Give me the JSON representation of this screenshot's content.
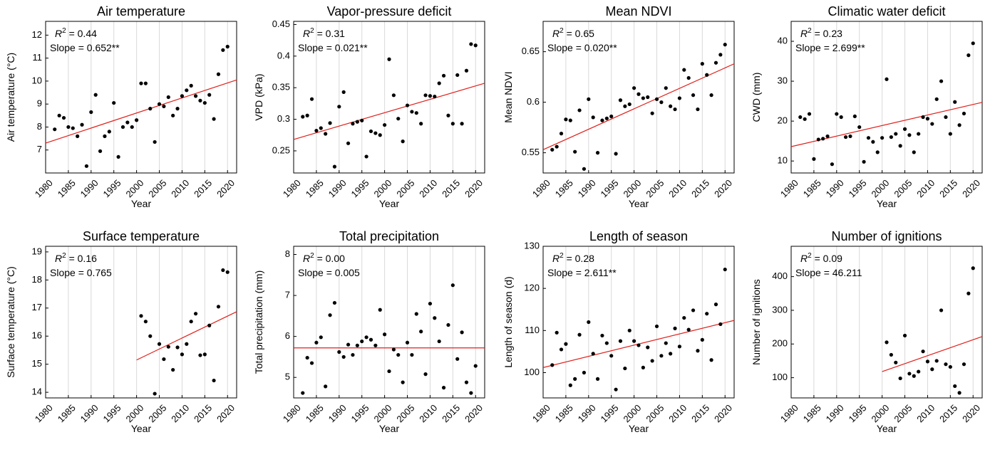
{
  "colors": {
    "points": "#000000",
    "fit_line": "#e0201b",
    "grid": "#d9d9d9",
    "axis": "#000000"
  },
  "chart_data": [
    {
      "type": "scatter",
      "title": "Air temperature",
      "xlabel": "Year",
      "ylabel": "Air temperature (°C)",
      "xlim": [
        1980,
        2022
      ],
      "ylim": [
        6.0,
        12.6
      ],
      "xticks": [
        1980,
        1985,
        1990,
        1995,
        2000,
        2005,
        2010,
        2015,
        2020
      ],
      "yticks": [
        7,
        8,
        9,
        10,
        11,
        12
      ],
      "r2_label": "R",
      "r2_sup": "2",
      "r2_value": " = 0.44",
      "slope_text": "Slope = 0.652**",
      "grid": "vertical",
      "fit": {
        "x": [
          1980,
          2022
        ],
        "y": [
          7.3,
          10.05
        ]
      },
      "x": [
        1982,
        1983,
        1984,
        1985,
        1986,
        1987,
        1988,
        1989,
        1990,
        1991,
        1992,
        1993,
        1994,
        1995,
        1996,
        1997,
        1998,
        1999,
        2000,
        2001,
        2002,
        2003,
        2004,
        2005,
        2006,
        2007,
        2008,
        2009,
        2010,
        2011,
        2012,
        2013,
        2014,
        2015,
        2016,
        2017,
        2018,
        2019,
        2020
      ],
      "y": [
        7.9,
        8.5,
        8.4,
        8.0,
        7.95,
        7.6,
        8.1,
        6.3,
        8.65,
        9.4,
        6.95,
        7.6,
        7.8,
        9.05,
        6.7,
        8.0,
        8.2,
        8.0,
        8.3,
        9.9,
        9.9,
        8.8,
        7.35,
        9.0,
        8.9,
        9.3,
        8.5,
        8.8,
        9.35,
        9.6,
        9.8,
        9.35,
        9.15,
        9.05,
        9.4,
        8.35,
        10.3,
        11.35,
        11.5
      ]
    },
    {
      "type": "scatter",
      "title": "Vapor-pressure deficit",
      "xlabel": "Year",
      "ylabel": "VPD (kPa)",
      "xlim": [
        1980,
        2022
      ],
      "ylim": [
        0.215,
        0.455
      ],
      "xticks": [
        1980,
        1985,
        1990,
        1995,
        2000,
        2005,
        2010,
        2015,
        2020
      ],
      "yticks": [
        0.25,
        0.3,
        0.35,
        0.4,
        0.45
      ],
      "r2_label": "R",
      "r2_sup": "2",
      "r2_value": " = 0.31",
      "slope_text": "Slope = 0.021**",
      "grid": "vertical",
      "fit": {
        "x": [
          1980,
          2022
        ],
        "y": [
          0.268,
          0.357
        ]
      },
      "x": [
        1982,
        1983,
        1984,
        1985,
        1986,
        1987,
        1988,
        1989,
        1990,
        1991,
        1992,
        1993,
        1994,
        1995,
        1996,
        1997,
        1998,
        1999,
        2000,
        2001,
        2002,
        2003,
        2004,
        2005,
        2006,
        2007,
        2008,
        2009,
        2010,
        2011,
        2012,
        2013,
        2014,
        2015,
        2016,
        2017,
        2018,
        2019,
        2020
      ],
      "y": [
        0.304,
        0.306,
        0.332,
        0.282,
        0.286,
        0.277,
        0.294,
        0.225,
        0.32,
        0.343,
        0.262,
        0.293,
        0.296,
        0.298,
        0.241,
        0.281,
        0.278,
        0.275,
        0.291,
        0.395,
        0.338,
        0.301,
        0.265,
        0.322,
        0.312,
        0.31,
        0.293,
        0.338,
        0.337,
        0.336,
        0.357,
        0.369,
        0.306,
        0.293,
        0.37,
        0.293,
        0.377,
        0.419,
        0.417
      ]
    },
    {
      "type": "scatter",
      "title": "Mean NDVI",
      "xlabel": "Year",
      "ylabel": "Mean NDVI",
      "xlim": [
        1980,
        2022
      ],
      "ylim": [
        0.53,
        0.68
      ],
      "xticks": [
        1980,
        1985,
        1990,
        1995,
        2000,
        2005,
        2010,
        2015,
        2020
      ],
      "yticks": [
        0.55,
        0.6,
        0.65
      ],
      "r2_label": "R",
      "r2_sup": "2",
      "r2_value": " = 0.65",
      "slope_text": "Slope = 0.020**",
      "grid": "vertical",
      "fit": {
        "x": [
          1980,
          2022
        ],
        "y": [
          0.553,
          0.638
        ]
      },
      "x": [
        1982,
        1983,
        1984,
        1985,
        1986,
        1987,
        1988,
        1989,
        1990,
        1991,
        1992,
        1993,
        1994,
        1995,
        1996,
        1997,
        1998,
        1999,
        2000,
        2001,
        2002,
        2003,
        2004,
        2005,
        2006,
        2007,
        2008,
        2009,
        2010,
        2011,
        2012,
        2013,
        2014,
        2015,
        2016,
        2017,
        2018,
        2019,
        2020
      ],
      "y": [
        0.553,
        0.556,
        0.569,
        0.583,
        0.582,
        0.551,
        0.592,
        0.534,
        0.603,
        0.585,
        0.55,
        0.582,
        0.584,
        0.586,
        0.549,
        0.602,
        0.596,
        0.598,
        0.614,
        0.608,
        0.604,
        0.605,
        0.589,
        0.603,
        0.6,
        0.614,
        0.596,
        0.593,
        0.604,
        0.632,
        0.624,
        0.607,
        0.593,
        0.638,
        0.627,
        0.607,
        0.639,
        0.647,
        0.657
      ]
    },
    {
      "type": "scatter",
      "title": "Climatic water deficit",
      "xlabel": "Year",
      "ylabel": "CWD (mm)",
      "xlim": [
        1980,
        2022
      ],
      "ylim": [
        7,
        45
      ],
      "xticks": [
        1980,
        1985,
        1990,
        1995,
        2000,
        2005,
        2010,
        2015,
        2020
      ],
      "yticks": [
        10,
        20,
        30,
        40
      ],
      "r2_label": "R",
      "r2_sup": "2",
      "r2_value": " = 0.23",
      "slope_text": "Slope = 2.699**",
      "grid": "vertical",
      "fit": {
        "x": [
          1980,
          2022
        ],
        "y": [
          13.6,
          24.7
        ]
      },
      "x": [
        1982,
        1983,
        1984,
        1985,
        1986,
        1987,
        1988,
        1989,
        1990,
        1991,
        1992,
        1993,
        1994,
        1995,
        1996,
        1997,
        1998,
        1999,
        2000,
        2001,
        2002,
        2003,
        2004,
        2005,
        2006,
        2007,
        2008,
        2009,
        2010,
        2011,
        2012,
        2013,
        2014,
        2015,
        2016,
        2017,
        2018,
        2019,
        2020
      ],
      "y": [
        21.0,
        20.5,
        21.8,
        10.5,
        15.4,
        15.6,
        16.2,
        9.2,
        21.8,
        21.0,
        16.0,
        16.2,
        21.2,
        18.5,
        9.8,
        15.8,
        14.8,
        12.2,
        15.8,
        30.5,
        16.0,
        16.8,
        13.8,
        18.0,
        16.5,
        12.2,
        16.8,
        21.0,
        20.6,
        19.3,
        25.5,
        30.0,
        21.0,
        16.8,
        24.8,
        19.0,
        21.9,
        36.5,
        39.5
      ]
    },
    {
      "type": "scatter",
      "title": "Surface temperature",
      "xlabel": "Year",
      "ylabel": "Surface temperature (°C)",
      "xlim": [
        1980,
        2022
      ],
      "ylim": [
        13.8,
        19.2
      ],
      "xticks": [
        1980,
        1985,
        1990,
        1995,
        2000,
        2005,
        2010,
        2015,
        2020
      ],
      "yticks": [
        14,
        15,
        16,
        17,
        18,
        19
      ],
      "r2_label": "R",
      "r2_sup": "2",
      "r2_value": " = 0.16",
      "slope_text": "Slope = 0.765",
      "grid": "vertical",
      "fit": {
        "x": [
          2000,
          2022
        ],
        "y": [
          15.15,
          16.87
        ]
      },
      "x": [
        2001,
        2002,
        2003,
        2004,
        2005,
        2006,
        2007,
        2008,
        2009,
        2010,
        2011,
        2012,
        2013,
        2014,
        2015,
        2016,
        2017,
        2018,
        2019,
        2020
      ],
      "y": [
        16.72,
        16.52,
        16.0,
        13.95,
        15.72,
        15.18,
        15.62,
        14.8,
        15.6,
        15.35,
        15.72,
        16.52,
        16.8,
        15.32,
        15.35,
        16.38,
        14.42,
        17.05,
        18.35,
        18.28
      ]
    },
    {
      "type": "scatter",
      "title": "Total precipitation",
      "xlabel": "Year",
      "ylabel": "Total precipitation (mm)",
      "xlim": [
        1980,
        2022
      ],
      "ylim": [
        4.5,
        8.2
      ],
      "xticks": [
        1980,
        1985,
        1990,
        1995,
        2000,
        2005,
        2010,
        2015,
        2020
      ],
      "yticks": [
        5,
        6,
        7,
        8
      ],
      "r2_label": "R",
      "r2_sup": "2",
      "r2_value": " = 0.00",
      "slope_text": "Slope = 0.005",
      "grid": "vertical",
      "fit": {
        "x": [
          1980,
          2022
        ],
        "y": [
          5.72,
          5.72
        ]
      },
      "x": [
        1982,
        1983,
        1984,
        1985,
        1986,
        1987,
        1988,
        1989,
        1990,
        1991,
        1992,
        1993,
        1994,
        1995,
        1996,
        1997,
        1998,
        1999,
        2000,
        2001,
        2002,
        2003,
        2004,
        2005,
        2006,
        2007,
        2008,
        2009,
        2010,
        2011,
        2012,
        2013,
        2014,
        2015,
        2016,
        2017,
        2018,
        2019,
        2020
      ],
      "y": [
        4.62,
        5.48,
        5.35,
        5.85,
        5.98,
        4.78,
        6.52,
        6.82,
        5.62,
        5.5,
        5.8,
        5.55,
        5.78,
        5.88,
        5.98,
        5.92,
        5.78,
        6.65,
        6.05,
        5.15,
        5.68,
        5.55,
        4.88,
        5.85,
        5.55,
        6.55,
        6.12,
        5.08,
        6.8,
        6.45,
        5.88,
        4.75,
        6.28,
        7.25,
        5.45,
        6.1,
        4.88,
        4.62,
        5.28
      ]
    },
    {
      "type": "scatter",
      "title": "Length of season",
      "xlabel": "Year",
      "ylabel": "Length of season (d)",
      "xlim": [
        1980,
        2022
      ],
      "ylim": [
        94,
        130
      ],
      "xticks": [
        1980,
        1985,
        1990,
        1995,
        2000,
        2005,
        2010,
        2015,
        2020
      ],
      "yticks": [
        100,
        110,
        120,
        130
      ],
      "r2_label": "R",
      "r2_sup": "2",
      "r2_value": " = 0.28",
      "slope_text": "Slope = 2.611**",
      "grid": "vertical",
      "fit": {
        "x": [
          1980,
          2022
        ],
        "y": [
          101.2,
          112.4
        ]
      },
      "x": [
        1982,
        1983,
        1984,
        1985,
        1986,
        1987,
        1988,
        1989,
        1990,
        1991,
        1992,
        1993,
        1994,
        1995,
        1996,
        1997,
        1998,
        1999,
        2000,
        2001,
        2002,
        2003,
        2004,
        2005,
        2006,
        2007,
        2008,
        2009,
        2010,
        2011,
        2012,
        2013,
        2014,
        2015,
        2016,
        2017,
        2018,
        2019,
        2020
      ],
      "y": [
        101.8,
        109.5,
        105.5,
        106.8,
        97.0,
        98.5,
        109.0,
        100.0,
        112.0,
        104.5,
        98.5,
        108.8,
        107.0,
        104.0,
        96.0,
        107.5,
        101.0,
        110.0,
        107.5,
        106.5,
        101.2,
        106.0,
        102.8,
        111.0,
        104.0,
        107.0,
        104.5,
        110.5,
        106.2,
        113.0,
        110.2,
        114.8,
        105.2,
        107.8,
        114.0,
        103.0,
        116.2,
        111.5,
        124.5
      ]
    },
    {
      "type": "scatter",
      "title": "Number of ignitions",
      "xlabel": "Year",
      "ylabel": "Number of ignitions",
      "xlim": [
        1980,
        2022
      ],
      "ylim": [
        40,
        490
      ],
      "xticks": [
        1980,
        1985,
        1990,
        1995,
        2000,
        2005,
        2010,
        2015,
        2020
      ],
      "yticks": [
        100,
        200,
        300,
        400
      ],
      "r2_label": "R",
      "r2_sup": "2",
      "r2_value": " = 0.09",
      "slope_text": "Slope = 46.211",
      "grid": "vertical",
      "fit": {
        "x": [
          2000,
          2022
        ],
        "y": [
          118,
          222
        ]
      },
      "x": [
        2001,
        2002,
        2003,
        2004,
        2005,
        2006,
        2007,
        2008,
        2009,
        2010,
        2011,
        2012,
        2013,
        2014,
        2015,
        2016,
        2017,
        2018,
        2019,
        2020
      ],
      "y": [
        205,
        168,
        145,
        98,
        225,
        112,
        105,
        118,
        178,
        148,
        125,
        150,
        300,
        140,
        132,
        75,
        55,
        140,
        350,
        425
      ]
    }
  ]
}
